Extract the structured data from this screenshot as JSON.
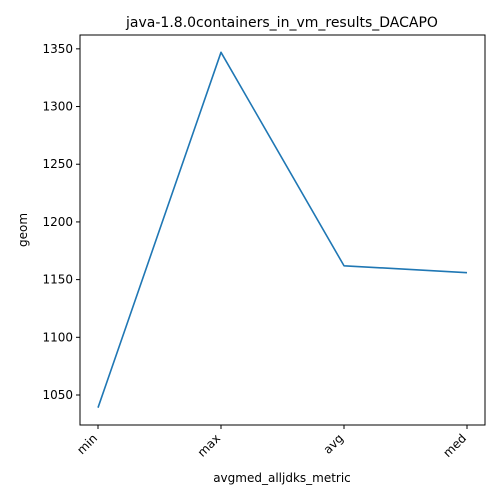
{
  "chart_data": {
    "type": "line",
    "title": "java-1.8.0containers_in_vm_results_DACAPO",
    "xlabel": "avgmed_alljdks_metric",
    "ylabel": "geom",
    "categories": [
      "min",
      "max",
      "avg",
      "med"
    ],
    "series": [
      {
        "values": [
          1039,
          1347,
          1162,
          1156
        ],
        "color": "#1f77b4"
      }
    ],
    "ylim": [
      1024,
      1362
    ],
    "yticks": [
      1050,
      1100,
      1150,
      1200,
      1250,
      1300,
      1350
    ],
    "grid": false,
    "legend": "none"
  }
}
